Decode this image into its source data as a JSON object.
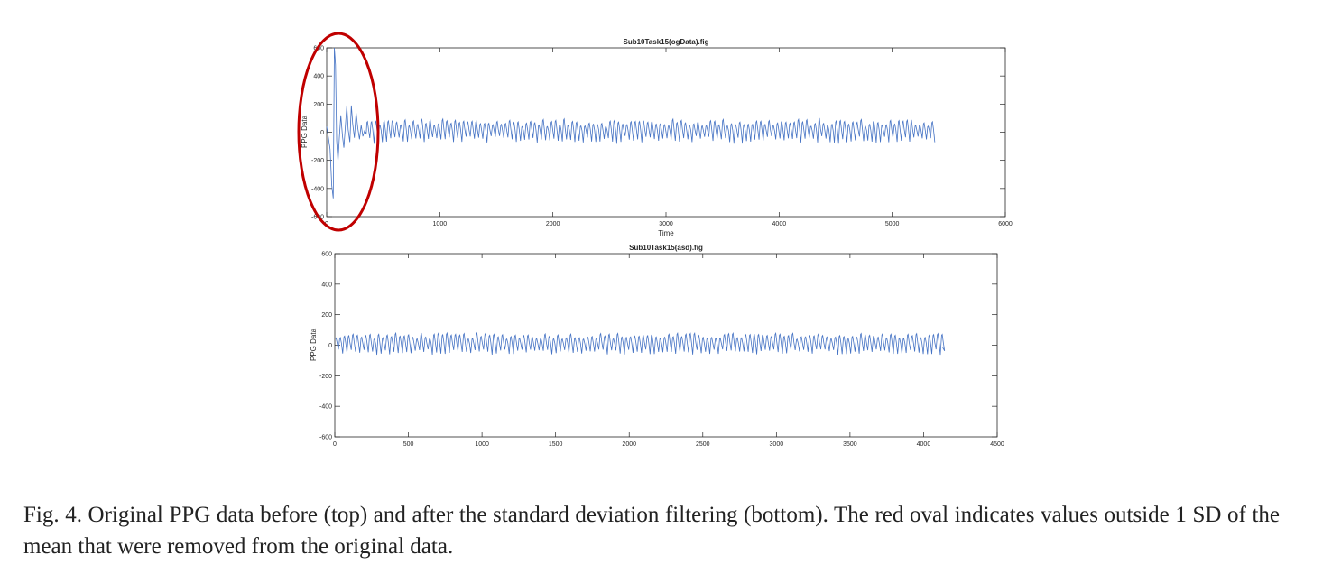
{
  "chart_data": [
    {
      "type": "line",
      "title": "Sub10Task15(ogData).fig",
      "xlabel": "Time",
      "ylabel": "PPG Data",
      "xlim": [
        0,
        6000
      ],
      "ylim": [
        -600,
        600
      ],
      "xticks": [
        "0",
        "1000",
        "2000",
        "3000",
        "4000",
        "5000",
        "6000"
      ],
      "yticks": [
        "-600",
        "-400",
        "-200",
        "0",
        "200",
        "400",
        "600"
      ],
      "series_color": "#4472c4",
      "series": [
        {
          "description_x": "samples 0–5370",
          "x_range": [
            0,
            5370
          ],
          "oscillation_period": 37,
          "baseline": 5,
          "amplitude_range": [
            35,
            90
          ],
          "initial_artifact": {
            "x": [
              0,
              12,
              30,
              45,
              58,
              68,
              78,
              88,
              100,
              112,
              125,
              140,
              152,
              165,
              178,
              190,
              205,
              218,
              230,
              245,
              260,
              275,
              290,
              305,
              320,
              335,
              350
            ],
            "y": [
              40,
              -20,
              -120,
              -380,
              -470,
              600,
              480,
              -60,
              -210,
              -40,
              120,
              -30,
              -110,
              40,
              190,
              20,
              -70,
              190,
              60,
              -40,
              140,
              30,
              -50,
              50,
              -30,
              10,
              -10
            ]
          }
        }
      ],
      "annotation": {
        "shape": "oval",
        "color": "#c00000",
        "x_range": [
          0,
          450
        ],
        "note": "highlights outliers beyond 1 SD"
      }
    },
    {
      "type": "line",
      "title": "Sub10Task15(asd).fig",
      "xlabel": "",
      "ylabel": "PPG Data",
      "xlim": [
        0,
        4500
      ],
      "ylim": [
        -600,
        600
      ],
      "xticks": [
        "0",
        "500",
        "1000",
        "1500",
        "2000",
        "2500",
        "3000",
        "3500",
        "4000",
        "4500"
      ],
      "yticks": [
        "-600",
        "-400",
        "-200",
        "0",
        "200",
        "400",
        "600"
      ],
      "series_color": "#4472c4",
      "series": [
        {
          "x_range": [
            0,
            4130
          ],
          "oscillation_period": 29,
          "baseline": 5,
          "amplitude_range": [
            35,
            75
          ]
        }
      ]
    }
  ],
  "caption": "Fig. 4. Original PPG data before (top) and after the standard deviation filtering (bottom). The red oval indicates values outside 1 SD of the mean that were removed from the original data."
}
